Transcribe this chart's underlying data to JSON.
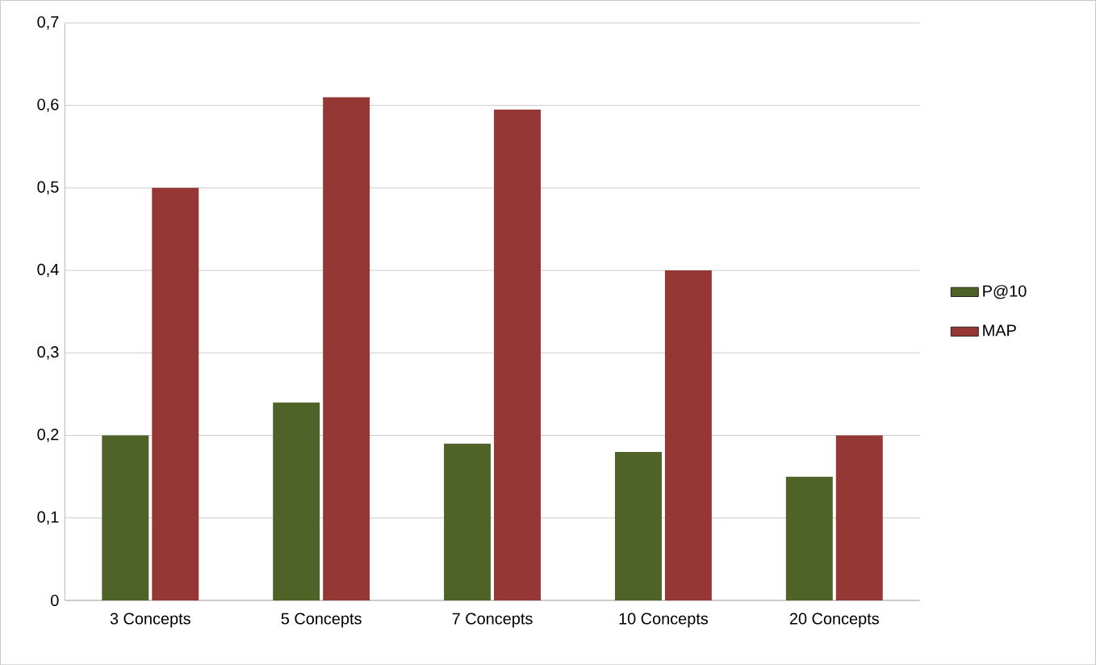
{
  "chart_data": {
    "type": "bar",
    "categories": [
      "3 Concepts",
      "5 Concepts",
      "7 Concepts",
      "10 Concepts",
      "20  Concepts"
    ],
    "series": [
      {
        "name": "P@10",
        "color": "#4f6228",
        "values": [
          0.2,
          0.24,
          0.19,
          0.18,
          0.15
        ]
      },
      {
        "name": "MAP",
        "color": "#953735",
        "values": [
          0.5,
          0.61,
          0.595,
          0.4,
          0.2
        ]
      }
    ],
    "ylim": [
      0,
      0.7
    ],
    "yticks": [
      {
        "value": 0,
        "label": "0"
      },
      {
        "value": 0.1,
        "label": "0,1"
      },
      {
        "value": 0.2,
        "label": "0,2"
      },
      {
        "value": 0.3,
        "label": "0,3"
      },
      {
        "value": 0.4,
        "label": "0,4"
      },
      {
        "value": 0.5,
        "label": "0,5"
      },
      {
        "value": 0.6,
        "label": "0,6"
      },
      {
        "value": 0.7,
        "label": "0,7"
      }
    ],
    "grid": "y",
    "legend": "right"
  }
}
